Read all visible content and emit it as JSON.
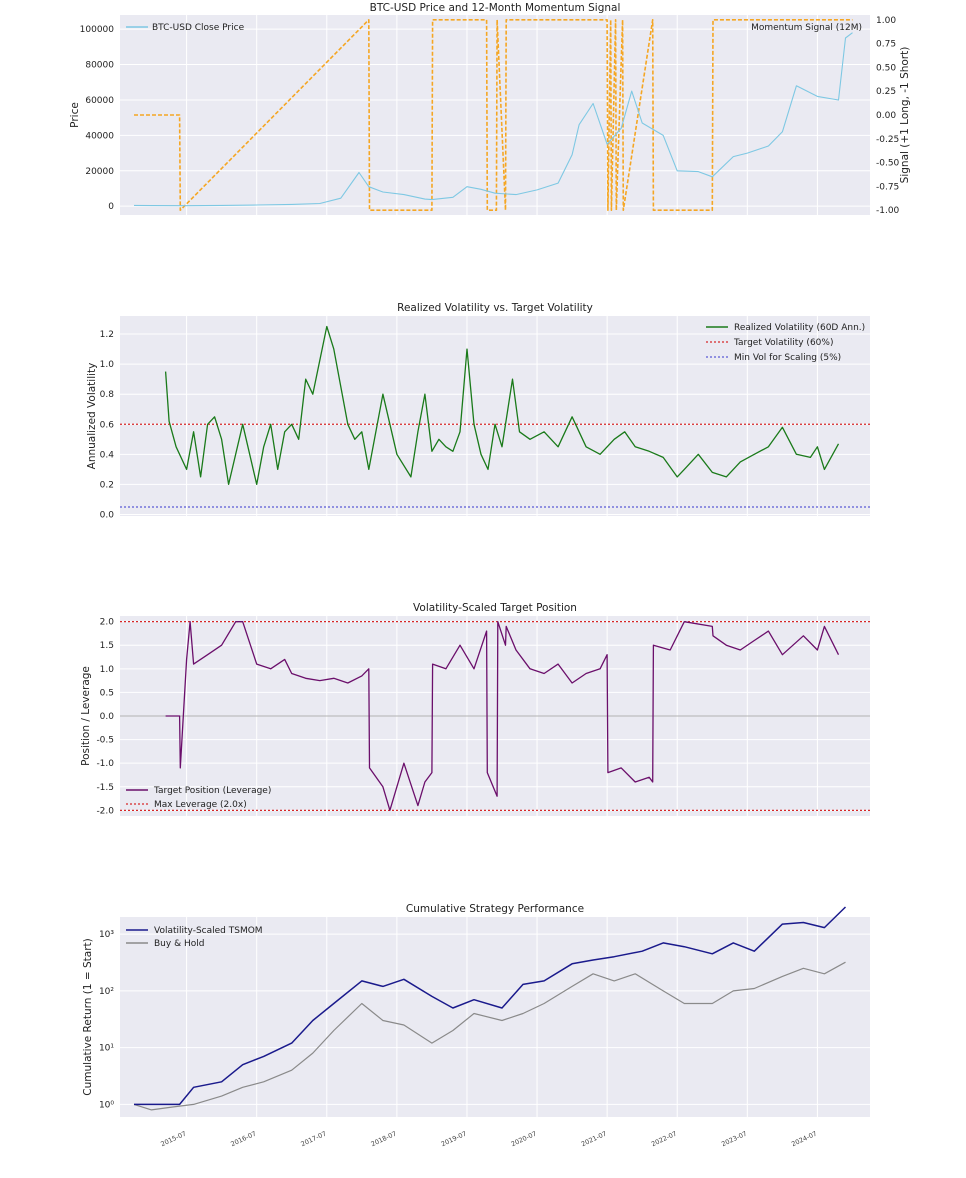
{
  "colors": {
    "btc_price": "#7ec8e3",
    "momentum": "#f5a623",
    "realized_vol": "#1a7a1a",
    "target_vol": "#d62728",
    "min_vol": "#5b5bd6",
    "position": "#6b0f6b",
    "max_leverage": "#d62728",
    "tsmom": "#1a1a8c",
    "buy_hold": "#8a8a8a"
  },
  "chart_data": [
    {
      "type": "line",
      "title": "BTC-USD Price and 12-Month Momentum Signal",
      "ylabel": "Price",
      "y2label": "Signal (+1 Long, -1 Short)",
      "ylim": [
        -5000,
        108000
      ],
      "y2lim": [
        -1.05,
        1.05
      ],
      "yticks": [
        "0",
        "20000",
        "40000",
        "60000",
        "80000",
        "100000"
      ],
      "y2ticks": [
        "-1.00",
        "-0.75",
        "-0.50",
        "-0.25",
        "0.00",
        "0.25",
        "0.50",
        "0.75",
        "1.00"
      ],
      "legend": {
        "left": "BTC-USD Close Price",
        "right": "Momentum Signal (12M)"
      },
      "series": [
        {
          "name": "BTC-USD Close Price",
          "x": [
            2014.75,
            2015.0,
            2015.5,
            2016.0,
            2016.5,
            2017.0,
            2017.4,
            2017.7,
            2017.96,
            2018.1,
            2018.3,
            2018.6,
            2018.9,
            2019.0,
            2019.3,
            2019.5,
            2019.7,
            2019.9,
            2020.2,
            2020.5,
            2020.8,
            2021.0,
            2021.1,
            2021.3,
            2021.5,
            2021.7,
            2021.85,
            2022.0,
            2022.3,
            2022.5,
            2022.8,
            2023.0,
            2023.3,
            2023.5,
            2023.8,
            2024.0,
            2024.2,
            2024.5,
            2024.8,
            2024.9,
            2025.0
          ],
          "y": [
            400,
            300,
            250,
            430,
            650,
            1000,
            1500,
            4500,
            19000,
            11000,
            8000,
            6500,
            4000,
            3700,
            5000,
            11000,
            9500,
            7300,
            6500,
            9200,
            13000,
            29000,
            46000,
            58000,
            35000,
            44000,
            65000,
            47000,
            40000,
            20000,
            19500,
            16600,
            28000,
            30000,
            34000,
            42000,
            68000,
            62000,
            60000,
            95000,
            98000
          ]
        },
        {
          "name": "Momentum Signal (12M)",
          "x": [
            2014.75,
            2015.4,
            2015.41,
            2018.1,
            2018.11,
            2019.0,
            2019.01,
            2019.78,
            2019.79,
            2019.92,
            2019.93,
            2020.05,
            2020.06,
            2021.5,
            2021.51,
            2021.55,
            2021.56,
            2021.62,
            2021.63,
            2021.72,
            2021.73,
            2022.15,
            2022.16,
            2023.0,
            2023.01,
            2025.0
          ],
          "y": [
            0,
            0,
            -1,
            1,
            -1,
            -1,
            1,
            1,
            -1,
            -1,
            1,
            -1,
            1,
            1,
            -1,
            1,
            -1,
            1,
            -1,
            1,
            -1,
            1,
            -1,
            -1,
            1,
            1
          ]
        }
      ]
    },
    {
      "type": "line",
      "title": "Realized Volatility vs. Target Volatility",
      "ylabel": "Annualized Volatility",
      "ylim": [
        -0.01,
        1.32
      ],
      "yticks": [
        "0.0",
        "0.2",
        "0.4",
        "0.6",
        "0.8",
        "1.0",
        "1.2"
      ],
      "series": [
        {
          "name": "Realized Volatility (60D Ann.)",
          "x": [
            2015.2,
            2015.25,
            2015.35,
            2015.5,
            2015.6,
            2015.7,
            2015.8,
            2015.9,
            2016.0,
            2016.1,
            2016.3,
            2016.5,
            2016.6,
            2016.7,
            2016.8,
            2016.9,
            2017.0,
            2017.1,
            2017.2,
            2017.3,
            2017.5,
            2017.6,
            2017.8,
            2017.9,
            2018.0,
            2018.1,
            2018.3,
            2018.5,
            2018.7,
            2018.8,
            2018.9,
            2019.0,
            2019.1,
            2019.2,
            2019.3,
            2019.4,
            2019.5,
            2019.6,
            2019.7,
            2019.8,
            2019.9,
            2020.0,
            2020.15,
            2020.25,
            2020.4,
            2020.6,
            2020.8,
            2021.0,
            2021.2,
            2021.4,
            2021.6,
            2021.75,
            2021.9,
            2022.1,
            2022.3,
            2022.5,
            2022.6,
            2022.8,
            2023.0,
            2023.2,
            2023.4,
            2023.6,
            2023.8,
            2024.0,
            2024.2,
            2024.4,
            2024.5,
            2024.6,
            2024.8
          ],
          "y": [
            0.95,
            0.62,
            0.45,
            0.3,
            0.55,
            0.25,
            0.6,
            0.65,
            0.5,
            0.2,
            0.6,
            0.2,
            0.45,
            0.6,
            0.3,
            0.55,
            0.6,
            0.5,
            0.9,
            0.8,
            1.25,
            1.1,
            0.6,
            0.5,
            0.55,
            0.3,
            0.8,
            0.4,
            0.25,
            0.55,
            0.8,
            0.42,
            0.5,
            0.45,
            0.42,
            0.55,
            1.1,
            0.6,
            0.4,
            0.3,
            0.6,
            0.45,
            0.9,
            0.55,
            0.5,
            0.55,
            0.45,
            0.65,
            0.45,
            0.4,
            0.5,
            0.55,
            0.45,
            0.42,
            0.38,
            0.25,
            0.3,
            0.4,
            0.28,
            0.25,
            0.35,
            0.4,
            0.45,
            0.58,
            0.4,
            0.38,
            0.45,
            0.3,
            0.47
          ]
        },
        {
          "name": "Target Volatility (60%)",
          "constant": 0.6
        },
        {
          "name": "Min Vol for Scaling (5%)",
          "constant": 0.05
        }
      ]
    },
    {
      "type": "line",
      "title": "Volatility-Scaled Target Position",
      "ylabel": "Position / Leverage",
      "ylim": [
        -2.12,
        2.12
      ],
      "yticks": [
        "-2.0",
        "-1.5",
        "-1.0",
        "-0.5",
        "0.0",
        "0.5",
        "1.0",
        "1.5",
        "2.0"
      ],
      "series": [
        {
          "name": "Target Position (Leverage)",
          "x": [
            2015.2,
            2015.4,
            2015.41,
            2015.5,
            2015.55,
            2015.6,
            2015.8,
            2016.0,
            2016.2,
            2016.3,
            2016.5,
            2016.7,
            2016.9,
            2017.0,
            2017.2,
            2017.4,
            2017.6,
            2017.8,
            2018.0,
            2018.1,
            2018.11,
            2018.3,
            2018.4,
            2018.6,
            2018.8,
            2018.9,
            2019.0,
            2019.01,
            2019.2,
            2019.4,
            2019.6,
            2019.78,
            2019.79,
            2019.93,
            2019.94,
            2020.05,
            2020.06,
            2020.2,
            2020.4,
            2020.6,
            2020.8,
            2021.0,
            2021.2,
            2021.4,
            2021.5,
            2021.51,
            2021.7,
            2021.9,
            2022.1,
            2022.15,
            2022.16,
            2022.4,
            2022.6,
            2023.0,
            2023.01,
            2023.2,
            2023.4,
            2023.6,
            2023.8,
            2024.0,
            2024.3,
            2024.5,
            2024.6,
            2024.8
          ],
          "y": [
            0,
            0,
            -1.1,
            1.2,
            2.0,
            1.1,
            1.3,
            1.5,
            2.0,
            2.0,
            1.1,
            1.0,
            1.2,
            0.9,
            0.8,
            0.75,
            0.8,
            0.7,
            0.85,
            1.0,
            -1.1,
            -1.5,
            -2.0,
            -1.0,
            -1.9,
            -1.4,
            -1.2,
            1.1,
            1.0,
            1.5,
            1.0,
            1.8,
            -1.2,
            -1.7,
            2.0,
            1.5,
            1.9,
            1.4,
            1.0,
            0.9,
            1.1,
            0.7,
            0.9,
            1.0,
            1.3,
            -1.2,
            -1.1,
            -1.4,
            -1.3,
            -1.4,
            1.5,
            1.4,
            2.0,
            1.9,
            1.7,
            1.5,
            1.4,
            1.6,
            1.8,
            1.3,
            1.7,
            1.4,
            1.9,
            1.3
          ]
        },
        {
          "name": "Max Leverage (2.0x)",
          "constant": [
            2.0,
            -2.0
          ]
        }
      ]
    },
    {
      "type": "line",
      "title": "Cumulative Strategy Performance",
      "ylabel": "Cumulative Return (1 = Start)",
      "yscale": "log",
      "ylim": [
        0.6,
        2000
      ],
      "yticks": [
        "10⁰",
        "10¹",
        "10²",
        "10³"
      ],
      "xticks": [
        "2015-07",
        "2016-07",
        "2017-07",
        "2018-07",
        "2019-07",
        "2020-07",
        "2021-07",
        "2022-07",
        "2023-07",
        "2024-07"
      ],
      "series": [
        {
          "name": "Volatility-Scaled TSMOM",
          "x": [
            2014.75,
            2015.0,
            2015.4,
            2015.6,
            2016.0,
            2016.3,
            2016.6,
            2017.0,
            2017.3,
            2017.6,
            2018.0,
            2018.3,
            2018.6,
            2019.0,
            2019.3,
            2019.6,
            2020.0,
            2020.3,
            2020.6,
            2021.0,
            2021.3,
            2021.6,
            2022.0,
            2022.3,
            2022.6,
            2023.0,
            2023.3,
            2023.6,
            2024.0,
            2024.3,
            2024.6,
            2024.9
          ],
          "y": [
            1.0,
            1.0,
            1.0,
            2.0,
            2.5,
            5.0,
            7.0,
            12,
            30,
            60,
            150,
            120,
            160,
            80,
            50,
            70,
            50,
            130,
            150,
            300,
            350,
            400,
            500,
            700,
            600,
            450,
            700,
            500,
            1500,
            1600,
            1300,
            3000
          ]
        },
        {
          "name": "Buy & Hold",
          "x": [
            2014.75,
            2015.0,
            2015.3,
            2015.6,
            2016.0,
            2016.3,
            2016.6,
            2017.0,
            2017.3,
            2017.6,
            2018.0,
            2018.3,
            2018.6,
            2019.0,
            2019.3,
            2019.6,
            2020.0,
            2020.3,
            2020.6,
            2021.0,
            2021.3,
            2021.6,
            2021.9,
            2022.3,
            2022.6,
            2023.0,
            2023.3,
            2023.6,
            2024.0,
            2024.3,
            2024.6,
            2024.9
          ],
          "y": [
            1.0,
            0.8,
            0.9,
            1.0,
            1.4,
            2.0,
            2.5,
            4.0,
            8.0,
            20,
            60,
            30,
            25,
            12,
            20,
            40,
            30,
            40,
            60,
            120,
            200,
            150,
            200,
            100,
            60,
            60,
            100,
            110,
            180,
            250,
            200,
            320
          ]
        }
      ]
    }
  ]
}
